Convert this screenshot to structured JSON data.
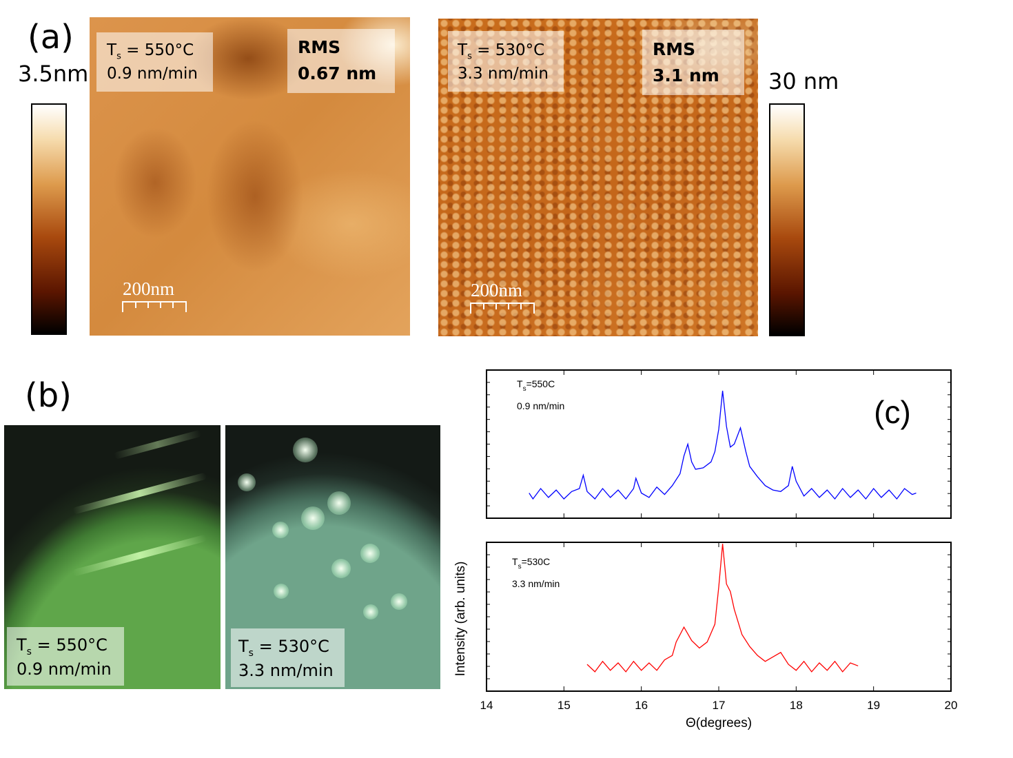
{
  "panel_a": {
    "label": "(a)",
    "left": {
      "colorbar_label": "3.5nm",
      "symbol": "T",
      "subscript": "s",
      "temperature": " = 550°C",
      "rate": "0.9 nm/min",
      "rms_title": "RMS",
      "rms_value": "0.67 nm",
      "scale_bar": "200nm"
    },
    "right": {
      "colorbar_label": "30 nm",
      "symbol": "T",
      "subscript": "s",
      "temperature": " = 530°C",
      "rate": "3.3 nm/min",
      "rms_title": "RMS",
      "rms_value": "3.1 nm",
      "scale_bar": "200nm"
    }
  },
  "panel_b": {
    "label": "(b)",
    "left": {
      "symbol": "T",
      "subscript": "s",
      "temperature": " = 550°C",
      "rate": "0.9 nm/min"
    },
    "right": {
      "symbol": "T",
      "subscript": "s",
      "temperature": " = 530°C",
      "rate": "3.3 nm/min"
    }
  },
  "chart_data": [
    {
      "type": "line",
      "panel_label": "(c)",
      "annotation": {
        "symbol": "T",
        "subscript": "s",
        "temperature": "=550C",
        "rate": "0.9 nm/min"
      },
      "color": "#0000ff",
      "xlim": [
        14,
        20
      ],
      "ylim": [
        0,
        100
      ],
      "x": [
        14.55,
        14.6,
        14.7,
        14.8,
        14.9,
        15.0,
        15.1,
        15.2,
        15.25,
        15.3,
        15.4,
        15.5,
        15.6,
        15.7,
        15.8,
        15.9,
        15.93,
        16.0,
        16.1,
        16.2,
        16.3,
        16.4,
        16.5,
        16.55,
        16.6,
        16.65,
        16.7,
        16.8,
        16.9,
        16.95,
        17.0,
        17.05,
        17.1,
        17.15,
        17.2,
        17.28,
        17.35,
        17.4,
        17.5,
        17.6,
        17.7,
        17.8,
        17.9,
        17.95,
        18.0,
        18.1,
        18.2,
        18.3,
        18.4,
        18.5,
        18.6,
        18.7,
        18.8,
        18.9,
        19.0,
        19.1,
        19.2,
        19.3,
        19.4,
        19.5,
        19.55
      ],
      "values": [
        17,
        13,
        20,
        14,
        19,
        13,
        18,
        20,
        29,
        18,
        13,
        20,
        14,
        19,
        13,
        20,
        27,
        17,
        14,
        21,
        16,
        22,
        30,
        42,
        50,
        38,
        33,
        34,
        38,
        45,
        60,
        86,
        62,
        48,
        50,
        61,
        45,
        35,
        28,
        22,
        19,
        18,
        22,
        35,
        25,
        15,
        20,
        14,
        19,
        13,
        20,
        14,
        19,
        13,
        20,
        14,
        19,
        13,
        20,
        16,
        17
      ]
    },
    {
      "type": "line",
      "annotation": {
        "symbol": "T",
        "subscript": "s",
        "temperature": "=530C",
        "rate": "3.3 nm/min"
      },
      "color": "#ff0000",
      "xlim": [
        14,
        20
      ],
      "ylim": [
        0,
        100
      ],
      "xticks": [
        14,
        15,
        16,
        17,
        18,
        19,
        20
      ],
      "xlabel": "Θ(degrees)",
      "ylabel": "Intensity (arb. units)",
      "x": [
        15.3,
        15.4,
        15.5,
        15.6,
        15.7,
        15.8,
        15.9,
        16.0,
        16.1,
        16.2,
        16.3,
        16.4,
        16.45,
        16.55,
        16.65,
        16.75,
        16.85,
        16.95,
        17.0,
        17.05,
        17.1,
        17.15,
        17.2,
        17.3,
        17.4,
        17.5,
        17.6,
        17.7,
        17.8,
        17.9,
        18.0,
        18.1,
        18.2,
        18.3,
        18.4,
        18.5,
        18.6,
        18.7,
        18.8
      ],
      "values": [
        18,
        13,
        20,
        14,
        19,
        13,
        20,
        14,
        19,
        14,
        21,
        24,
        33,
        43,
        34,
        29,
        33,
        45,
        70,
        99,
        72,
        67,
        55,
        38,
        30,
        24,
        20,
        23,
        26,
        18,
        14,
        20,
        13,
        19,
        14,
        20,
        13,
        19,
        17
      ]
    }
  ]
}
